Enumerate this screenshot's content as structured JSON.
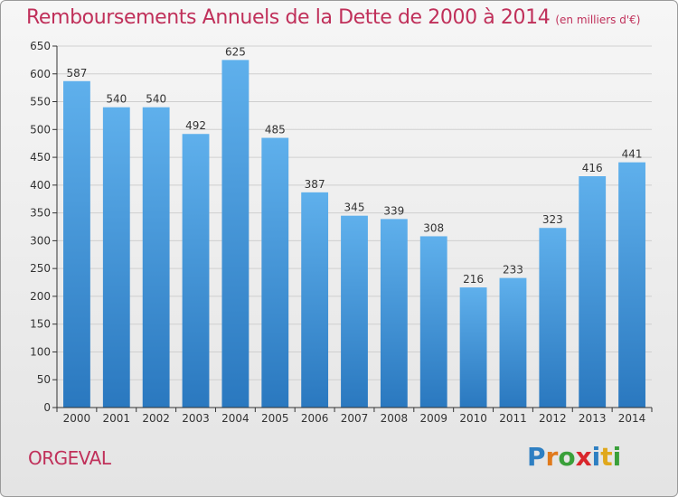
{
  "chart_data": {
    "type": "bar",
    "title": "Remboursements Annuels de la Dette de 2000 à 2014",
    "unit_note": "(en milliers d'€)",
    "categories": [
      "2000",
      "2001",
      "2002",
      "2003",
      "2004",
      "2005",
      "2006",
      "2007",
      "2008",
      "2009",
      "2010",
      "2011",
      "2012",
      "2013",
      "2014"
    ],
    "values": [
      587,
      540,
      540,
      492,
      625,
      485,
      387,
      345,
      339,
      308,
      216,
      233,
      323,
      416,
      441
    ],
    "ylim": [
      0,
      650
    ],
    "yticks": [
      0,
      50,
      100,
      150,
      200,
      250,
      300,
      350,
      400,
      450,
      500,
      550,
      600,
      650
    ],
    "grid": true,
    "bar_color": "#3d8fd6"
  },
  "footer": {
    "city": "ORGEVAL"
  },
  "logo": {
    "letters": [
      "P",
      "r",
      "o",
      "x",
      "i",
      "t",
      "i"
    ],
    "colors": [
      "#2e7fc2",
      "#e07a1c",
      "#3aa03a",
      "#d9262c",
      "#2e7fc2",
      "#e0a81c",
      "#3aa03a"
    ]
  }
}
